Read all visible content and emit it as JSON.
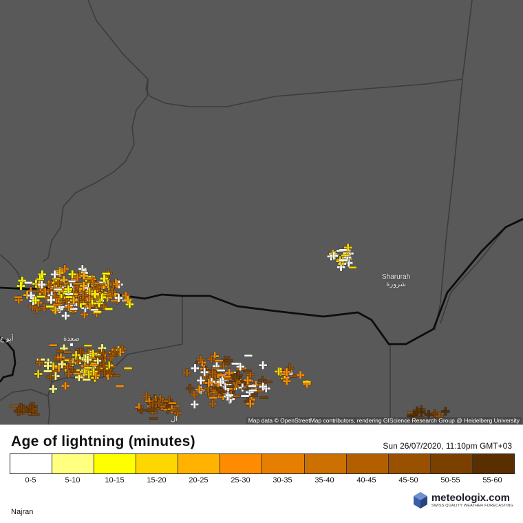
{
  "map": {
    "places": [
      {
        "name": "Sharurah",
        "name_ar": "شرورة"
      },
      {
        "name": "صعدة"
      },
      {
        "name": "أبو ع"
      },
      {
        "name": "ال"
      }
    ],
    "attribution": "Map data © OpenStreetMap contributors, rendering GIScience Research Group @ Heidelberg University",
    "lightning_clusters": [
      {
        "region": "saada-west",
        "dominant_ages": [
          "0-5",
          "10-15",
          "20-25",
          "30-35",
          "40-45"
        ]
      },
      {
        "region": "sharurah",
        "dominant_ages": [
          "0-5",
          "15-20"
        ]
      },
      {
        "region": "south-central",
        "dominant_ages": [
          "0-5",
          "25-30",
          "40-45",
          "50-55"
        ]
      }
    ]
  },
  "legend": {
    "title": "Age of lightning (minutes)",
    "timestamp": "Sun 26/07/2020, 11:10pm GMT+03",
    "bins": [
      {
        "label": "0-5",
        "color": "#ffffff"
      },
      {
        "label": "5-10",
        "color": "#ffff80"
      },
      {
        "label": "10-15",
        "color": "#ffff00"
      },
      {
        "label": "15-20",
        "color": "#ffd700"
      },
      {
        "label": "20-25",
        "color": "#ffb300"
      },
      {
        "label": "25-30",
        "color": "#ff8c00"
      },
      {
        "label": "30-35",
        "color": "#e67e00"
      },
      {
        "label": "35-40",
        "color": "#cc7000"
      },
      {
        "label": "40-45",
        "color": "#b35f00"
      },
      {
        "label": "45-50",
        "color": "#995000"
      },
      {
        "label": "50-55",
        "color": "#7a4000"
      },
      {
        "label": "55-60",
        "color": "#5a2f00"
      }
    ]
  },
  "footer": {
    "region": "Najran",
    "brand": "meteologix.com",
    "tagline": "SWISS QUALITY WEATHER FORECASTING"
  }
}
